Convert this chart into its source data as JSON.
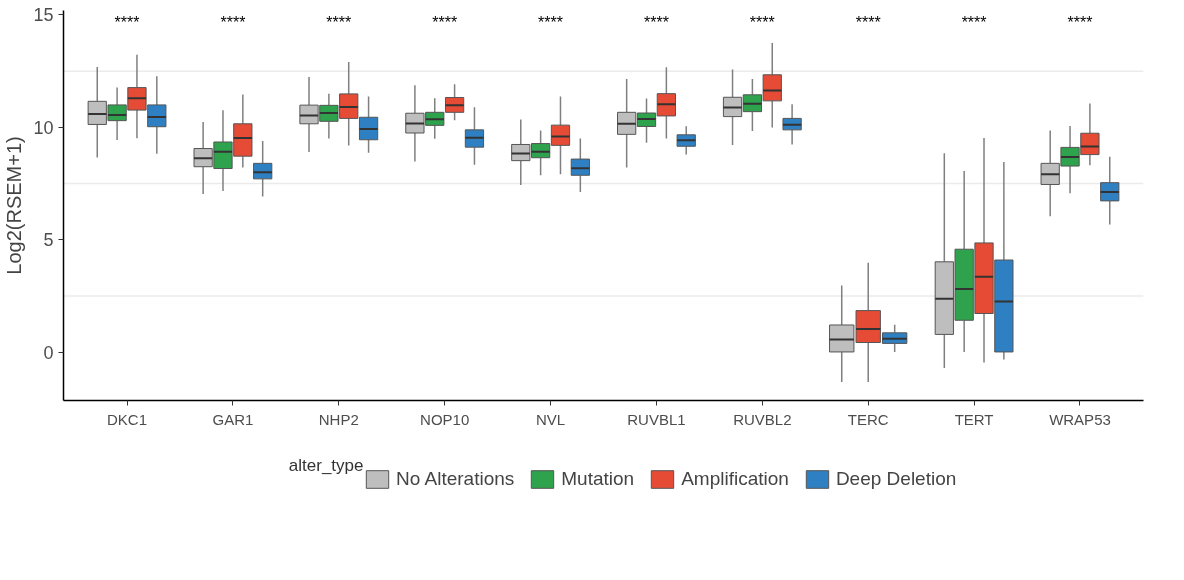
{
  "chart_data": {
    "type": "box",
    "ylabel": "Log2(RSEM+1)",
    "legend_title": "alter_type",
    "categories": [
      "DKC1",
      "GAR1",
      "NHP2",
      "NOP10",
      "NVL",
      "RUVBL1",
      "RUVBL2",
      "TERC",
      "TERT",
      "WRAP53"
    ],
    "ylim": [
      -2.15,
      15.2
    ],
    "yticks": [
      0,
      5,
      10,
      15
    ],
    "grid": false,
    "legend": "bottom",
    "ref_lines": [
      {
        "axis": "y",
        "value": 2.5,
        "label": null,
        "color": "#ebebeb"
      },
      {
        "axis": "y",
        "value": 7.5,
        "label": null,
        "color": "#ebebeb"
      },
      {
        "axis": "y",
        "value": 12.5,
        "label": null,
        "color": "#ebebeb"
      }
    ],
    "series": [
      {
        "name": "No Alterations",
        "color": "#bebebe",
        "boxes": [
          {
            "low": 8.66,
            "q1": 10.13,
            "median": 10.6,
            "q3": 11.16,
            "high": 12.69
          },
          {
            "low": 7.04,
            "q1": 8.25,
            "median": 8.63,
            "q3": 9.06,
            "high": 10.24
          },
          {
            "low": 8.91,
            "q1": 10.16,
            "median": 10.53,
            "q3": 10.99,
            "high": 12.24
          },
          {
            "low": 8.48,
            "q1": 9.75,
            "median": 10.17,
            "q3": 10.63,
            "high": 11.88
          },
          {
            "low": 7.44,
            "q1": 8.52,
            "median": 8.84,
            "q3": 9.24,
            "high": 10.35
          },
          {
            "low": 8.21,
            "q1": 9.69,
            "median": 10.16,
            "q3": 10.67,
            "high": 12.15
          },
          {
            "low": 9.22,
            "q1": 10.48,
            "median": 10.88,
            "q3": 11.34,
            "high": 12.58
          },
          {
            "low": -1.33,
            "q1": 0.01,
            "median": 0.56,
            "q3": 1.21,
            "high": 2.97
          },
          {
            "low": -0.7,
            "q1": 0.79,
            "median": 2.38,
            "q3": 4.02,
            "high": 8.85
          },
          {
            "low": 6.05,
            "q1": 7.46,
            "median": 7.91,
            "q3": 8.4,
            "high": 9.86
          }
        ]
      },
      {
        "name": "Mutation",
        "color": "#2ea24c",
        "boxes": [
          {
            "low": 9.44,
            "q1": 10.3,
            "median": 10.55,
            "q3": 11.0,
            "high": 11.77
          },
          {
            "low": 7.17,
            "q1": 8.17,
            "median": 8.92,
            "q3": 9.35,
            "high": 10.76
          },
          {
            "low": 9.51,
            "q1": 10.27,
            "median": 10.64,
            "q3": 10.98,
            "high": 11.5
          },
          {
            "low": 9.49,
            "q1": 10.09,
            "median": 10.36,
            "q3": 10.67,
            "high": 11.3
          },
          {
            "low": 7.87,
            "q1": 8.65,
            "median": 8.92,
            "q3": 9.28,
            "high": 9.86
          },
          {
            "low": 9.32,
            "q1": 10.04,
            "median": 10.37,
            "q3": 10.64,
            "high": 11.29
          },
          {
            "low": 9.84,
            "q1": 10.7,
            "median": 11.05,
            "q3": 11.45,
            "high": 12.15
          },
          null,
          {
            "low": 0.01,
            "q1": 1.42,
            "median": 2.81,
            "q3": 4.58,
            "high": 8.06
          },
          {
            "low": 7.07,
            "q1": 8.28,
            "median": 8.68,
            "q3": 9.11,
            "high": 10.06
          }
        ]
      },
      {
        "name": "Amplification",
        "color": "#e64b35",
        "boxes": [
          {
            "low": 9.52,
            "q1": 10.77,
            "median": 11.3,
            "q3": 11.77,
            "high": 13.23
          },
          {
            "low": 8.21,
            "q1": 8.72,
            "median": 9.53,
            "q3": 10.16,
            "high": 11.46
          },
          {
            "low": 9.19,
            "q1": 10.4,
            "median": 10.91,
            "q3": 11.49,
            "high": 12.91
          },
          {
            "low": 10.32,
            "q1": 10.67,
            "median": 10.99,
            "q3": 11.33,
            "high": 11.92
          },
          {
            "low": 7.91,
            "q1": 9.2,
            "median": 9.59,
            "q3": 10.1,
            "high": 11.37
          },
          {
            "low": 9.51,
            "q1": 10.51,
            "median": 11.03,
            "q3": 11.5,
            "high": 12.67
          },
          {
            "low": 10.0,
            "q1": 11.18,
            "median": 11.64,
            "q3": 12.34,
            "high": 13.75
          },
          {
            "low": -1.33,
            "q1": 0.43,
            "median": 1.03,
            "q3": 1.85,
            "high": 3.98
          },
          {
            "low": -0.46,
            "q1": 1.72,
            "median": 3.36,
            "q3": 4.86,
            "high": 9.53
          },
          {
            "low": 8.32,
            "q1": 8.79,
            "median": 9.15,
            "q3": 9.74,
            "high": 11.06
          }
        ]
      },
      {
        "name": "Deep Deletion",
        "color": "#2f80c3",
        "boxes": [
          {
            "low": 8.83,
            "q1": 10.03,
            "median": 10.46,
            "q3": 11.0,
            "high": 12.27
          },
          {
            "low": 6.93,
            "q1": 7.71,
            "median": 8.0,
            "q3": 8.4,
            "high": 9.39
          },
          {
            "low": 8.87,
            "q1": 9.45,
            "median": 9.93,
            "q3": 10.45,
            "high": 11.37
          },
          {
            "low": 8.34,
            "q1": 9.12,
            "median": 9.54,
            "q3": 9.89,
            "high": 10.9
          },
          {
            "low": 7.13,
            "q1": 7.87,
            "median": 8.18,
            "q3": 8.59,
            "high": 9.51
          },
          {
            "low": 8.79,
            "q1": 9.16,
            "median": 9.43,
            "q3": 9.67,
            "high": 10.05
          },
          {
            "low": 9.24,
            "q1": 9.89,
            "median": 10.12,
            "q3": 10.4,
            "high": 11.03
          },
          {
            "low": 0.01,
            "q1": 0.39,
            "median": 0.6,
            "q3": 0.86,
            "high": 1.22
          },
          {
            "low": -0.33,
            "q1": 0.01,
            "median": 2.25,
            "q3": 4.1,
            "high": 8.46
          },
          {
            "low": 5.68,
            "q1": 6.73,
            "median": 7.13,
            "q3": 7.54,
            "high": 8.69
          }
        ]
      }
    ],
    "annotations": [
      "****",
      "****",
      "****",
      "****",
      "****",
      "****",
      "****",
      "****",
      "****",
      "****"
    ]
  }
}
